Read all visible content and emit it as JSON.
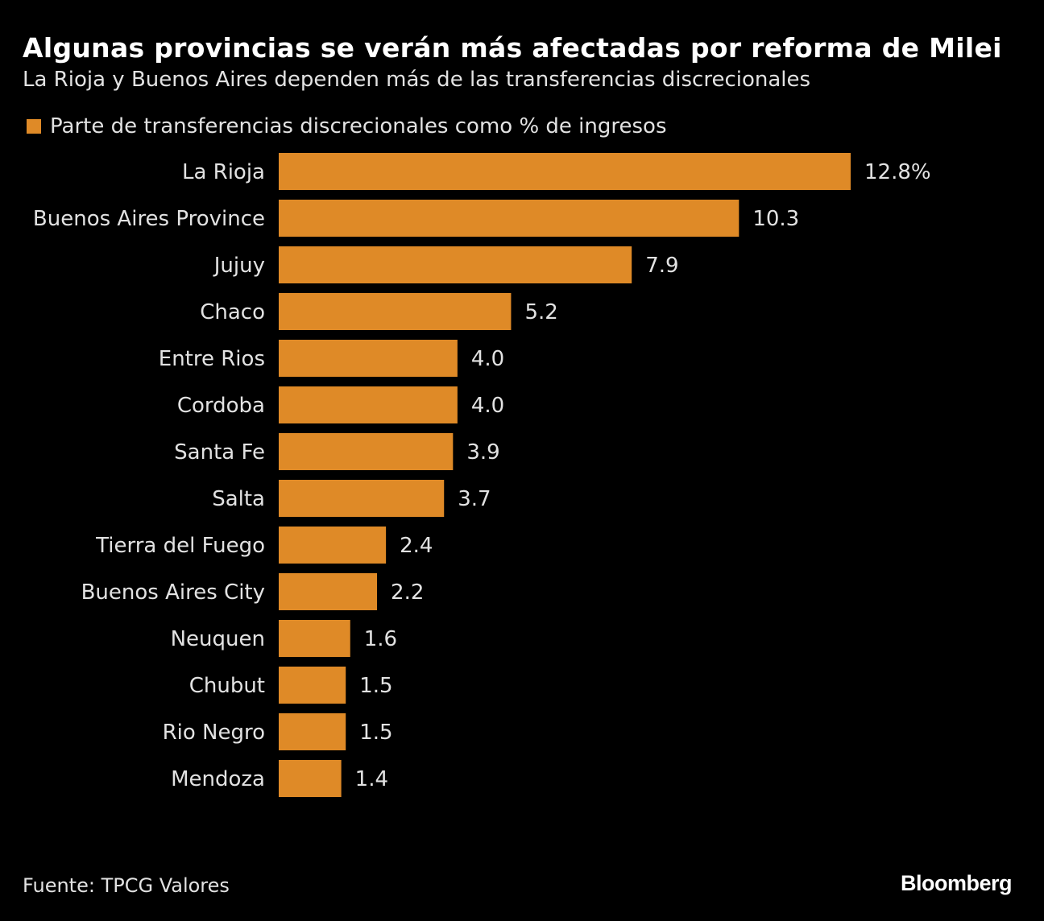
{
  "title": "Algunas provincias se verán más afectadas por reforma de Milei",
  "subtitle": "La Rioja y Buenos Aires dependen más de las transferencias discrecionales",
  "source": "Fuente: TPCG Valores",
  "logo": "Bloomberg",
  "colors": {
    "bar": "#DF8A27",
    "background": "#000000",
    "text": "#E2E2E2"
  },
  "chart_data": {
    "type": "bar",
    "orientation": "horizontal",
    "title": "Algunas provincias se verán más afectadas por reforma de Milei",
    "xlabel": "",
    "ylabel": "",
    "xlim": [
      0,
      12.8
    ],
    "grid": false,
    "legend_position": "top-left",
    "series": [
      {
        "name": "Parte de transferencias discrecionales como % de ingresos",
        "values": [
          12.8,
          10.3,
          7.9,
          5.2,
          4.0,
          4.0,
          3.9,
          3.7,
          2.4,
          2.2,
          1.6,
          1.5,
          1.5,
          1.4
        ]
      }
    ],
    "categories": [
      "La Rioja",
      "Buenos Aires Province",
      "Jujuy",
      "Chaco",
      "Entre Rios",
      "Cordoba",
      "Santa Fe",
      "Salta",
      "Tierra del Fuego",
      "Buenos Aires City",
      "Neuquen",
      "Chubut",
      "Rio Negro",
      "Mendoza"
    ],
    "data_labels": [
      "12.8%",
      "10.3",
      "7.9",
      "5.2",
      "4.0",
      "4.0",
      "3.9",
      "3.7",
      "2.4",
      "2.2",
      "1.6",
      "1.5",
      "1.5",
      "1.4"
    ]
  }
}
